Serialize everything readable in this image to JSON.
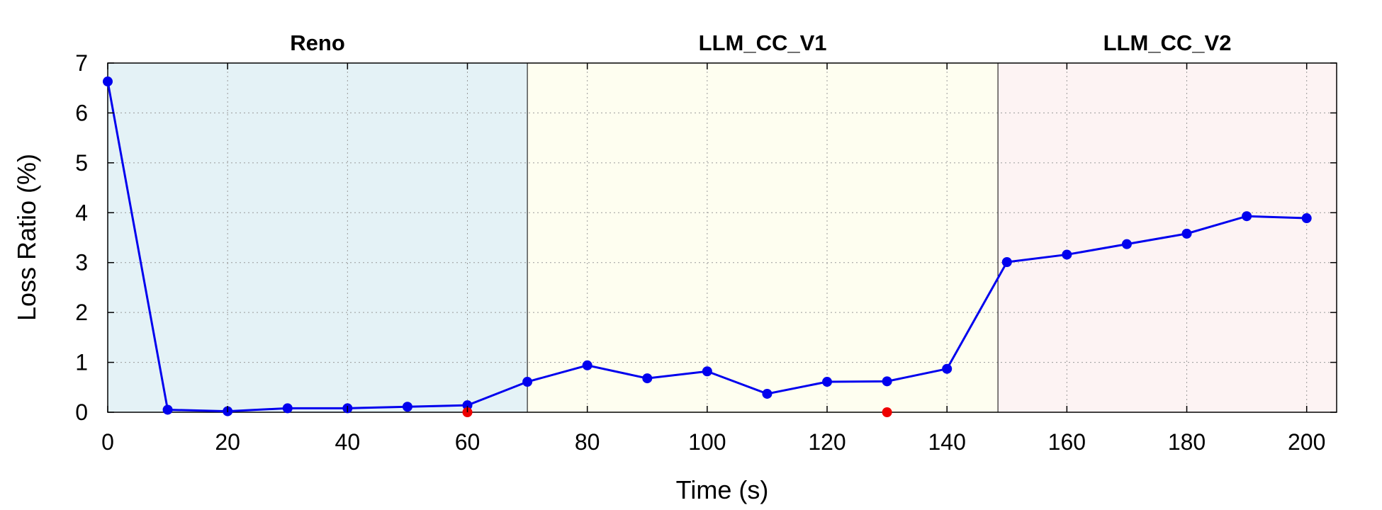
{
  "chart_data": {
    "type": "line",
    "title": "",
    "xlabel": "Time (s)",
    "ylabel": "Loss Ratio (%)",
    "xlim": [
      0,
      205
    ],
    "ylim": [
      0,
      7
    ],
    "xticks": [
      0,
      20,
      40,
      60,
      80,
      100,
      120,
      140,
      160,
      180,
      200
    ],
    "yticks": [
      0,
      1,
      2,
      3,
      4,
      5,
      6,
      7
    ],
    "grid": true,
    "regions": [
      {
        "label": "Reno",
        "start": 0,
        "end": 70,
        "color": "#e4f2f6"
      },
      {
        "label": "LLM_CC_V1",
        "start": 70,
        "end": 148.5,
        "color": "#fefef0"
      },
      {
        "label": "LLM_CC_V2",
        "start": 148.5,
        "end": 205,
        "color": "#fdf3f3"
      }
    ],
    "series": [
      {
        "color": "#0000ee",
        "x": [
          0,
          10,
          20,
          30,
          40,
          50,
          60,
          70,
          80,
          90,
          100,
          110,
          120,
          130,
          140,
          150,
          160,
          170,
          180,
          190,
          200
        ],
        "y": [
          6.63,
          0.05,
          0.02,
          0.08,
          0.08,
          0.11,
          0.14,
          0.61,
          0.94,
          0.68,
          0.82,
          0.37,
          0.61,
          0.62,
          0.87,
          3.01,
          3.16,
          3.37,
          3.58,
          3.93,
          3.89
        ]
      }
    ],
    "markers": [
      {
        "color": "#ee0000",
        "x": 60,
        "y": 0
      },
      {
        "color": "#ee0000",
        "x": 130,
        "y": 0
      }
    ]
  }
}
